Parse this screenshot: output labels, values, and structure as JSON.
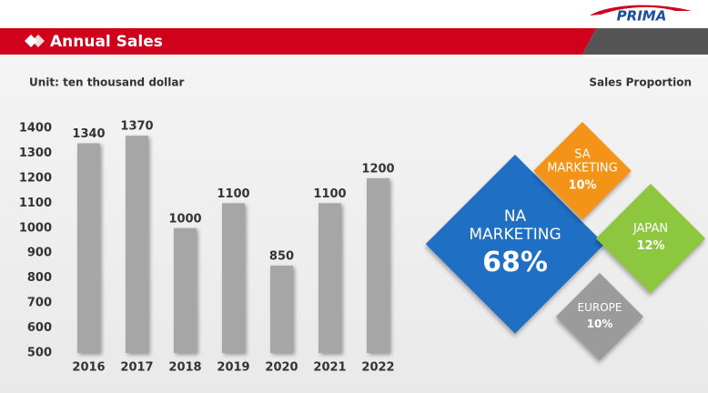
{
  "header": {
    "title": "Annual Sales",
    "logo": "PRIMA"
  },
  "chart_data": [
    {
      "type": "bar",
      "subtitle": "Unit: ten thousand dollar",
      "categories": [
        "2016",
        "2017",
        "2018",
        "2019",
        "2020",
        "2021",
        "2022"
      ],
      "values": [
        1340,
        1370,
        1000,
        1100,
        850,
        1100,
        1200
      ],
      "color": "#a6a6a6",
      "ylim": [
        500,
        1400
      ],
      "yticks": [
        500,
        600,
        700,
        800,
        900,
        1000,
        1100,
        1200,
        1300,
        1400
      ],
      "grid": false
    },
    {
      "type": "diamond",
      "title": "Sales Proportion",
      "categories": [
        "NA MARKETING",
        "SA MARKETING",
        "JAPAN",
        "EUROPE"
      ],
      "values": [
        68,
        10,
        12,
        10
      ],
      "value_labels": [
        "68%",
        "10%",
        "12%",
        "10%"
      ],
      "colors": [
        "#1f6fc4",
        "#f39419",
        "#8dc63f",
        "#9b9b9b"
      ]
    }
  ]
}
